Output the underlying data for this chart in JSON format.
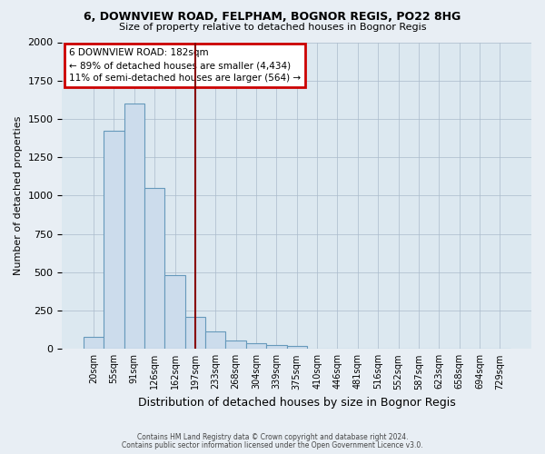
{
  "title1": "6, DOWNVIEW ROAD, FELPHAM, BOGNOR REGIS, PO22 8HG",
  "title2": "Size of property relative to detached houses in Bognor Regis",
  "xlabel": "Distribution of detached houses by size in Bognor Regis",
  "ylabel": "Number of detached properties",
  "categories": [
    "20sqm",
    "55sqm",
    "91sqm",
    "126sqm",
    "162sqm",
    "197sqm",
    "233sqm",
    "268sqm",
    "304sqm",
    "339sqm",
    "375sqm",
    "410sqm",
    "446sqm",
    "481sqm",
    "516sqm",
    "552sqm",
    "587sqm",
    "623sqm",
    "658sqm",
    "694sqm",
    "729sqm"
  ],
  "values": [
    80,
    1420,
    1600,
    1050,
    480,
    210,
    115,
    55,
    35,
    25,
    20,
    0,
    0,
    0,
    0,
    0,
    0,
    0,
    0,
    0,
    0
  ],
  "bar_color": "#ccdcec",
  "bar_edge_color": "#6699bb",
  "vertical_line_x": 5,
  "vertical_line_color": "#880000",
  "annotation_text": "6 DOWNVIEW ROAD: 182sqm\n← 89% of detached houses are smaller (4,434)\n11% of semi-detached houses are larger (564) →",
  "annotation_box_color": "#ffffff",
  "annotation_box_edge": "#cc0000",
  "footer1": "Contains HM Land Registry data © Crown copyright and database right 2024.",
  "footer2": "Contains public sector information licensed under the Open Government Licence v3.0.",
  "ylim": [
    0,
    2000
  ],
  "background_color": "#e8eef4",
  "plot_bg_color": "#dce8f0",
  "title_fontsize": 9,
  "subtitle_fontsize": 8
}
